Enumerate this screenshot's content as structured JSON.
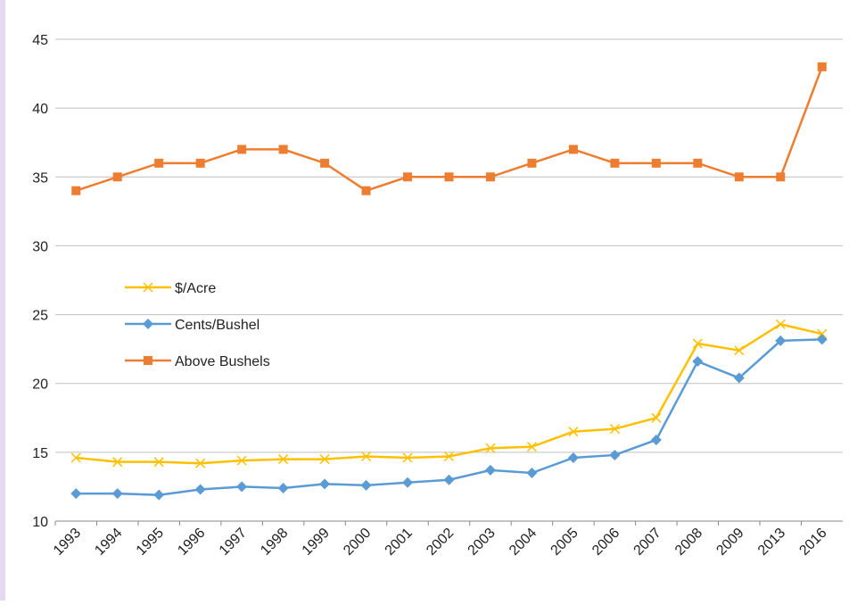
{
  "chart_data": {
    "type": "line",
    "categories": [
      "1993",
      "1994",
      "1995",
      "1996",
      "1997",
      "1998",
      "1999",
      "2000",
      "2001",
      "2002",
      "2003",
      "2004",
      "2005",
      "2006",
      "2007",
      "2008",
      "2009",
      "2013",
      "2016"
    ],
    "series": [
      {
        "name": "$/Acre",
        "color": "#ffc000",
        "marker": "x",
        "values": [
          14.6,
          14.3,
          14.3,
          14.2,
          14.4,
          14.5,
          14.5,
          14.7,
          14.6,
          14.7,
          15.3,
          15.4,
          16.5,
          16.7,
          17.5,
          22.9,
          22.4,
          24.3,
          23.6
        ]
      },
      {
        "name": "Cents/Bushel",
        "color": "#5b9bd5",
        "marker": "diamond",
        "values": [
          12.0,
          12.0,
          11.9,
          12.3,
          12.5,
          12.4,
          12.7,
          12.6,
          12.8,
          13.0,
          13.7,
          13.5,
          14.6,
          14.8,
          15.9,
          21.6,
          20.4,
          23.1,
          23.2
        ]
      },
      {
        "name": "Above Bushels",
        "color": "#ed7d31",
        "marker": "square",
        "values": [
          34,
          35,
          36,
          36,
          37,
          37,
          36,
          34,
          35,
          35,
          35,
          36,
          37,
          36,
          36,
          36,
          35,
          35,
          43
        ]
      }
    ],
    "ylim": [
      10,
      45
    ],
    "yticks": [
      10,
      15,
      20,
      25,
      30,
      35,
      40,
      45
    ],
    "grid": true,
    "legend": "left"
  }
}
